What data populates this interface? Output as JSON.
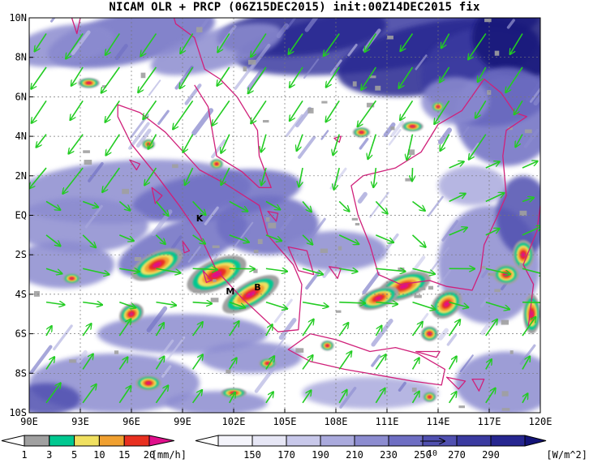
{
  "title": "NICAM OLR + PRCP (06Z15DEC2015) init:00Z14DEC2015 fix",
  "map": {
    "lat_labels": [
      "10N",
      "8N",
      "6N",
      "4N",
      "2N",
      "EQ",
      "2S",
      "4S",
      "6S",
      "8S",
      "10S"
    ],
    "lon_labels": [
      "90E",
      "93E",
      "96E",
      "99E",
      "102E",
      "105E",
      "108E",
      "111E",
      "114E",
      "117E",
      "120E"
    ],
    "lat_range": [
      -10,
      10
    ],
    "lon_range": [
      90,
      120
    ],
    "station_labels": [
      {
        "text": "K",
        "lon": 100.0,
        "lat": -0.3
      },
      {
        "text": "M",
        "lon": 101.8,
        "lat": -4.0
      },
      {
        "text": "B",
        "lon": 103.4,
        "lat": -3.8
      }
    ],
    "olr_colors": [
      "#e6e6f5",
      "#c8c8ea",
      "#aaaadd",
      "#8c8cd0",
      "#6e6ec3",
      "#5050b0",
      "#3a3aa0",
      "#262690",
      "#141478"
    ],
    "precip_colors": [
      "#a0a0a0",
      "#00c890",
      "#f0e060",
      "#f0a030",
      "#e83020",
      "#e0108c"
    ],
    "coast_color": "#d0207a",
    "wind_color": "#22cc22"
  },
  "precip_colorbar": {
    "labels": [
      "1",
      "3",
      "5",
      "10",
      "15",
      "20"
    ],
    "unit": "[mm/h]"
  },
  "olr_colorbar": {
    "labels": [
      "150",
      "170",
      "190",
      "210",
      "230",
      "250",
      "270",
      "290"
    ],
    "unit": "[W/m^2]",
    "vector_ref": "10"
  }
}
